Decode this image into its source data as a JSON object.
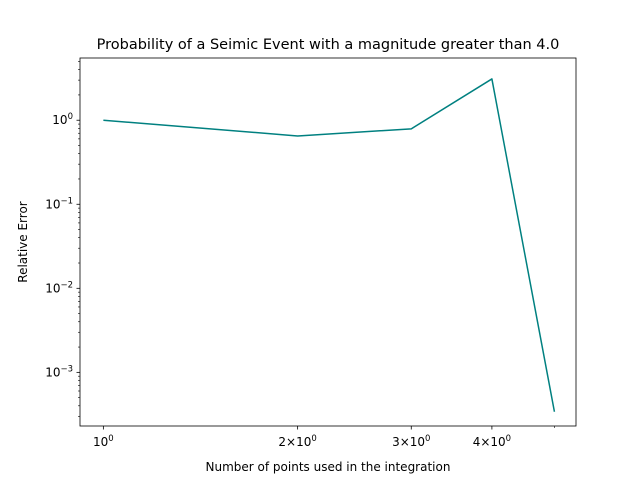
{
  "chart_data": {
    "type": "line",
    "title": "Probability of a Seimic Event with a magnitude greater than 4.0",
    "xlabel": "Number of points used in the integration",
    "ylabel": "Relative Error",
    "xscale": "log",
    "yscale": "log",
    "xlim": [
      0.92,
      5.4
    ],
    "ylim": [
      0.00023,
      5.5
    ],
    "grid": false,
    "line_color": "#008080",
    "x_ticks": [
      {
        "value": 1,
        "base": "10",
        "exp": "0"
      },
      {
        "value": 2,
        "base": "2×10",
        "exp": "0"
      },
      {
        "value": 3,
        "base": "3×10",
        "exp": "0"
      },
      {
        "value": 4,
        "base": "4×10",
        "exp": "0"
      }
    ],
    "y_ticks": [
      {
        "value": 1,
        "base": "10",
        "exp": "0"
      },
      {
        "value": 0.1,
        "base": "10",
        "exp": "−1"
      },
      {
        "value": 0.01,
        "base": "10",
        "exp": "−2"
      },
      {
        "value": 0.001,
        "base": "10",
        "exp": "−3"
      }
    ],
    "series": [
      {
        "x": [
          1,
          2,
          3,
          4,
          5
        ],
        "y": [
          1.0,
          0.65,
          0.79,
          3.1,
          0.00034
        ]
      }
    ]
  }
}
